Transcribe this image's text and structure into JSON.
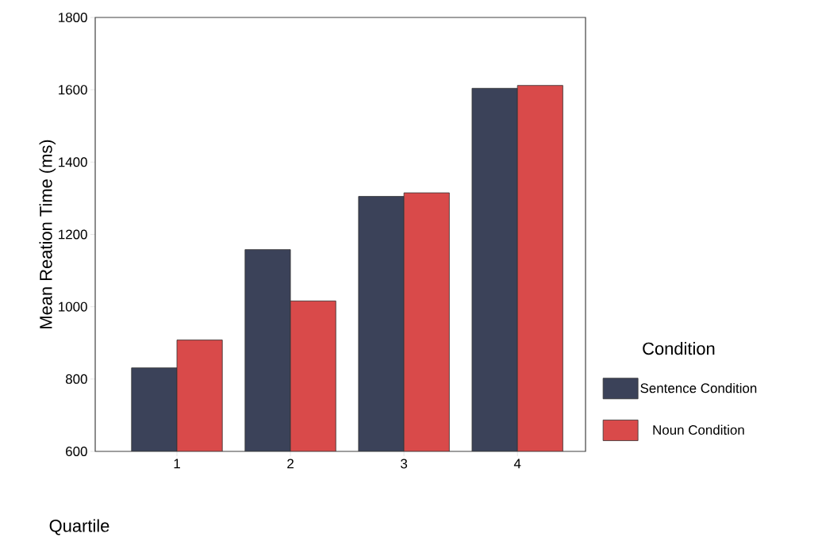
{
  "chart_data": {
    "type": "bar",
    "xlabel": "Quartile",
    "ylabel": "Mean Reation Time (ms)",
    "legend_title": "Condition",
    "categories": [
      "1",
      "2",
      "3",
      "4"
    ],
    "series": [
      {
        "name": "Sentence Condition",
        "color": "#3b4259",
        "values": [
          831,
          1158,
          1305,
          1604
        ]
      },
      {
        "name": "Noun Condition",
        "color": "#d94a4a",
        "values": [
          908,
          1016,
          1315,
          1612
        ]
      }
    ],
    "ylim": [
      600,
      1800
    ],
    "yticks": [
      600,
      800,
      1000,
      1200,
      1400,
      1600,
      1800
    ],
    "grid": false,
    "legend": "right"
  }
}
